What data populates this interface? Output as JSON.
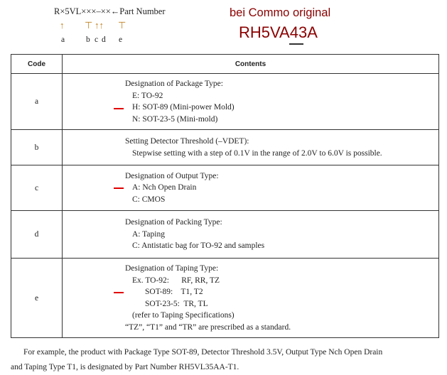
{
  "header": {
    "part_format": "R×5VL×××–××←Part Number",
    "letters": [
      "a",
      "b",
      "c",
      "d",
      "e"
    ],
    "note": "bei Commo original",
    "part_number": "RH5VA43A"
  },
  "table": {
    "headers": [
      "Code",
      "Contents"
    ],
    "rows": [
      {
        "code": "a",
        "lines": [
          "Designation of Package Type:",
          "E: TO-92",
          "H: SOT-89 (Mini-power Mold)",
          "N: SOT-23-5 (Mini-mold)"
        ]
      },
      {
        "code": "b",
        "lines": [
          "Setting Detector Threshold (–VDET):",
          "Stepwise setting with a step of 0.1V in the range of 2.0V to 6.0V is possible."
        ]
      },
      {
        "code": "c",
        "lines": [
          "Designation of Output Type:",
          "A: Nch Open Drain",
          "C: CMOS"
        ]
      },
      {
        "code": "d",
        "lines": [
          "Designation of Packing Type:",
          "A:  Taping",
          "C:  Antistatic bag for TO-92 and samples"
        ]
      },
      {
        "code": "e",
        "lines": [
          "Designation of Taping Type:",
          "Ex. TO-92:      RF, RR, TZ",
          "SOT-89:    T1, T2",
          "SOT-23-5:  TR, TL",
          "(refer to Taping Specifications)",
          "“TZ”, “T1” and “TR” are prescribed as a standard."
        ]
      }
    ]
  },
  "footer": [
    "For example, the product with Package Type SOT-89, Detector Threshold 3.5V, Output Type Nch Open Drain",
    "and Taping Type T1, is designated by Part Number RH5VL35AA-T1."
  ],
  "colors": {
    "annotation": "#8b0000",
    "marker": "#e00000"
  }
}
